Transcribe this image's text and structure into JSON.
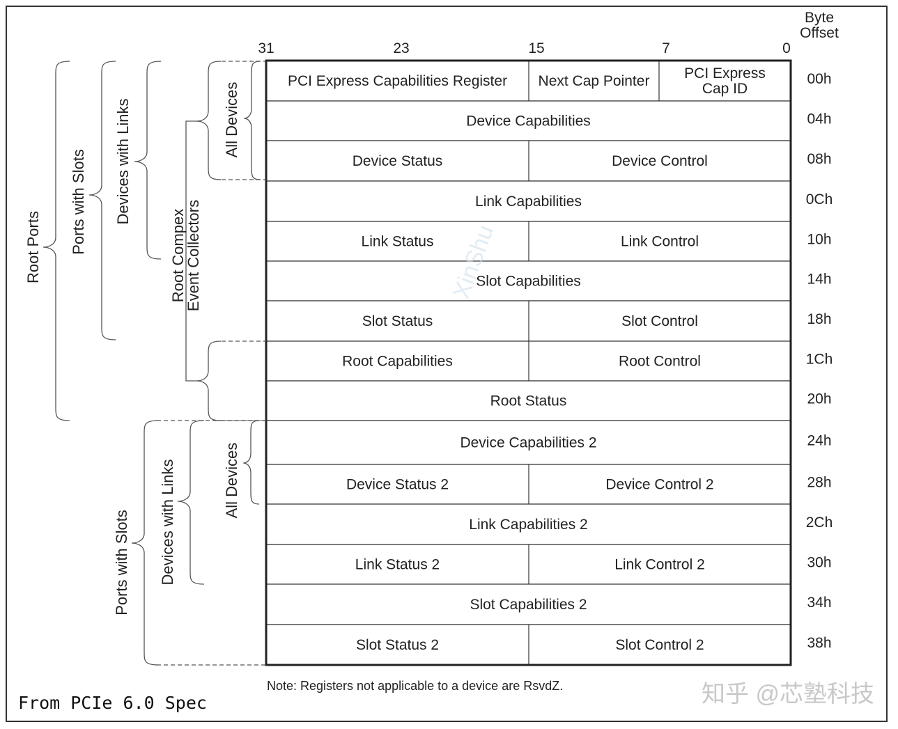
{
  "header": {
    "byte_offset_label": [
      "Byte",
      "Offset"
    ],
    "bit_labels": [
      "31",
      "23",
      "15",
      "7",
      "0"
    ]
  },
  "rows": [
    {
      "offset": "00h",
      "cells": [
        "PCI Express Capabilities Register",
        "Next Cap Pointer",
        "PCI Express|Cap ID"
      ],
      "layout": "three"
    },
    {
      "offset": "04h",
      "cells": [
        "Device Capabilities"
      ],
      "layout": "full"
    },
    {
      "offset": "08h",
      "cells": [
        "Device Status",
        "Device Control"
      ],
      "layout": "half"
    },
    {
      "offset": "0Ch",
      "cells": [
        "Link Capabilities"
      ],
      "layout": "full"
    },
    {
      "offset": "10h",
      "cells": [
        "Link Status",
        "Link Control"
      ],
      "layout": "half"
    },
    {
      "offset": "14h",
      "cells": [
        "Slot Capabilities"
      ],
      "layout": "full"
    },
    {
      "offset": "18h",
      "cells": [
        "Slot Status",
        "Slot Control"
      ],
      "layout": "half"
    },
    {
      "offset": "1Ch",
      "cells": [
        "Root Capabilities",
        "Root Control"
      ],
      "layout": "half"
    },
    {
      "offset": "20h",
      "cells": [
        "Root Status"
      ],
      "layout": "full"
    },
    {
      "offset": "24h",
      "cells": [
        "Device Capabilities 2"
      ],
      "layout": "full"
    },
    {
      "offset": "28h",
      "cells": [
        "Device Status 2",
        "Device Control 2"
      ],
      "layout": "half"
    },
    {
      "offset": "2Ch",
      "cells": [
        "Link Capabilities 2"
      ],
      "layout": "full"
    },
    {
      "offset": "30h",
      "cells": [
        "Link Status 2",
        "Link Control 2"
      ],
      "layout": "half"
    },
    {
      "offset": "34h",
      "cells": [
        "Slot Capabilities 2"
      ],
      "layout": "full"
    },
    {
      "offset": "38h",
      "cells": [
        "Slot Status 2",
        "Slot Control 2"
      ],
      "layout": "half"
    }
  ],
  "groups": {
    "root_ports": "Root Ports",
    "ports_with_slots": "Ports with Slots",
    "devices_with_links": "Devices with Links",
    "all_devices": "All Devices",
    "root_complex_event_collectors": [
      "Root Compex",
      "Event Collectors"
    ],
    "ports_with_slots_2": "Ports with Slots",
    "devices_with_links_2": "Devices with Links",
    "all_devices_2": "All Devices"
  },
  "note": "Note:  Registers not applicable to a device are RsvdZ.",
  "caption": "From PCIe 6.0 Spec",
  "watermarks": {
    "zhihu": "知乎 @芯塾科技",
    "diagonal": "XinShu"
  }
}
